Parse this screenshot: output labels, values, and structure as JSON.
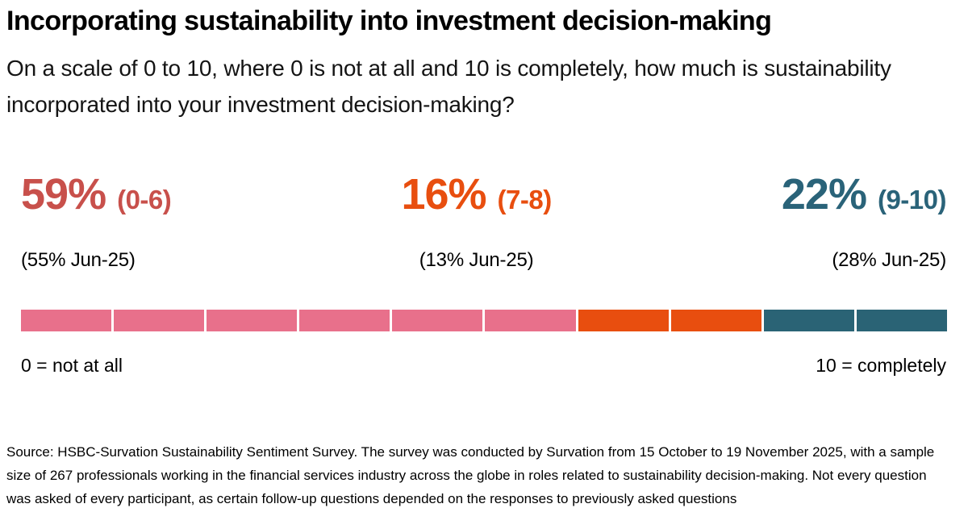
{
  "header": {
    "title": "Incorporating sustainability into investment decision-making",
    "subtitle": "On a scale of 0 to 10, where 0 is not at all and 10 is completely, how much is sustainability incorporated into your investment decision-making?"
  },
  "chart_data": {
    "type": "bar",
    "title": "Incorporating sustainability into investment decision-making",
    "question": "On a scale of 0 to 10, where 0 is not at all and 10 is completely, how much is sustainability incorporated into your investment decision-making?",
    "scale_min": 0,
    "scale_max": 10,
    "scale_min_label": "0 = not at all",
    "scale_max_label": "10 = completely",
    "total_segments": 10,
    "legend_position": "none",
    "groups": [
      {
        "name": "score-0-6",
        "value_pct": 59,
        "value_display": "59%",
        "range_label": "(0-6)",
        "previous_pct": 55,
        "previous_label": "(55% Jun-25)",
        "text_color": "#C8504B",
        "bar_color": "#E8708B",
        "segments": 6
      },
      {
        "name": "score-7-8",
        "value_pct": 16,
        "value_display": "16%",
        "range_label": "(7-8)",
        "previous_pct": 13,
        "previous_label": "(13% Jun-25)",
        "text_color": "#E84E0F",
        "bar_color": "#E84E0F",
        "segments": 2
      },
      {
        "name": "score-9-10",
        "value_pct": 22,
        "value_display": "22%",
        "range_label": "(9-10)",
        "previous_pct": 28,
        "previous_label": "(28% Jun-25)",
        "text_color": "#2A6379",
        "bar_color": "#2A6375",
        "segments": 2
      }
    ]
  },
  "footer": {
    "source": "Source: HSBC-Survation Sustainability Sentiment Survey. The survey was conducted by Survation from 15 October to 19 November 2025, with a sample size of 267 professionals working in the financial services industry across the globe in roles related to sustainability decision-making. Not every question was asked of every participant, as certain follow-up questions depended on the responses to previously asked questions"
  }
}
